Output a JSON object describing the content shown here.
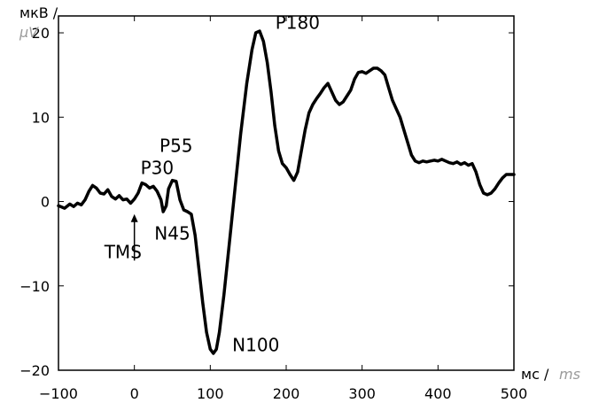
{
  "chart_data": {
    "type": "line",
    "title": "",
    "xlabel": "мс / ms",
    "xlabel_parts": {
      "main": "мс /",
      "alt": "ms"
    },
    "ylabel": "мкВ / µV",
    "ylabel_parts": {
      "main": "мкВ /",
      "alt": "µV"
    },
    "xlim": [
      -100,
      500
    ],
    "ylim": [
      -20,
      22
    ],
    "x_ticks": [
      -100,
      0,
      100,
      200,
      300,
      400,
      500
    ],
    "y_ticks": [
      -20,
      -10,
      0,
      10,
      20
    ],
    "x_tick_labels": [
      "−100",
      "0",
      "100",
      "200",
      "300",
      "400",
      "500"
    ],
    "y_tick_labels": [
      "−20",
      "−10",
      "0",
      "10",
      "20"
    ],
    "grid": false,
    "line_color": "#000000",
    "series": [
      {
        "x": [
          -100,
          -92,
          -85,
          -80,
          -75,
          -70,
          -65,
          -60,
          -55,
          -50,
          -45,
          -40,
          -35,
          -30,
          -25,
          -20,
          -15,
          -10,
          -5,
          0,
          5,
          10,
          15,
          20,
          25,
          30,
          35,
          38,
          42,
          45,
          50,
          55,
          60,
          65,
          70,
          75,
          80,
          85,
          90,
          95,
          100,
          104,
          108,
          112,
          118,
          125,
          132,
          140,
          148,
          155,
          160,
          165,
          170,
          175,
          180,
          185,
          190,
          195,
          200,
          205,
          210,
          215,
          220,
          225,
          230,
          235,
          240,
          245,
          250,
          255,
          260,
          265,
          270,
          275,
          280,
          285,
          290,
          295,
          300,
          305,
          310,
          315,
          320,
          325,
          330,
          335,
          340,
          345,
          350,
          355,
          360,
          365,
          370,
          375,
          380,
          385,
          390,
          395,
          400,
          405,
          410,
          415,
          420,
          425,
          430,
          435,
          440,
          445,
          450,
          455,
          460,
          465,
          470,
          475,
          480,
          485,
          490,
          495,
          500
        ],
        "y": [
          -0.5,
          -0.8,
          -0.3,
          -0.6,
          -0.2,
          -0.4,
          0.2,
          1.2,
          1.9,
          1.6,
          1.0,
          0.9,
          1.4,
          0.6,
          0.3,
          0.7,
          0.2,
          0.3,
          -0.2,
          0.3,
          1.0,
          2.2,
          2.0,
          1.6,
          1.8,
          1.2,
          0.2,
          -1.2,
          -0.5,
          1.5,
          2.5,
          2.4,
          0.2,
          -1.0,
          -1.2,
          -1.5,
          -4.0,
          -8.0,
          -12.0,
          -15.5,
          -17.5,
          -18.0,
          -17.5,
          -15.5,
          -11.0,
          -5.0,
          1.0,
          8.0,
          14.0,
          18.0,
          20.0,
          20.2,
          19.0,
          16.5,
          13.0,
          9.0,
          6.0,
          4.5,
          4.0,
          3.2,
          2.5,
          3.5,
          6.0,
          8.5,
          10.5,
          11.5,
          12.2,
          12.8,
          13.5,
          14.0,
          13.0,
          12.0,
          11.5,
          11.8,
          12.5,
          13.2,
          14.5,
          15.3,
          15.4,
          15.2,
          15.5,
          15.8,
          15.8,
          15.5,
          15.0,
          13.5,
          12.0,
          11.0,
          10.0,
          8.5,
          7.0,
          5.5,
          4.8,
          4.6,
          4.8,
          4.7,
          4.8,
          4.9,
          4.8,
          5.0,
          4.8,
          4.6,
          4.5,
          4.7,
          4.4,
          4.6,
          4.3,
          4.5,
          3.5,
          2.0,
          1.0,
          0.8,
          1.0,
          1.5,
          2.2,
          2.8,
          3.2,
          3.2,
          3.2
        ]
      }
    ],
    "annotations": [
      {
        "label": "P30",
        "x": 30,
        "y": 4.0
      },
      {
        "label": "P55",
        "x": 55,
        "y": 6.6
      },
      {
        "label": "N45",
        "x": 50,
        "y": -3.8
      },
      {
        "label": "TMS",
        "x": -15,
        "y": -6.0
      },
      {
        "label": "P180",
        "x": 215,
        "y": 21.2
      },
      {
        "label": "N100",
        "x": 160,
        "y": -17.0
      }
    ],
    "tms_marker": {
      "x": 0,
      "y_from": -7.0,
      "y_to": -1.5
    }
  }
}
